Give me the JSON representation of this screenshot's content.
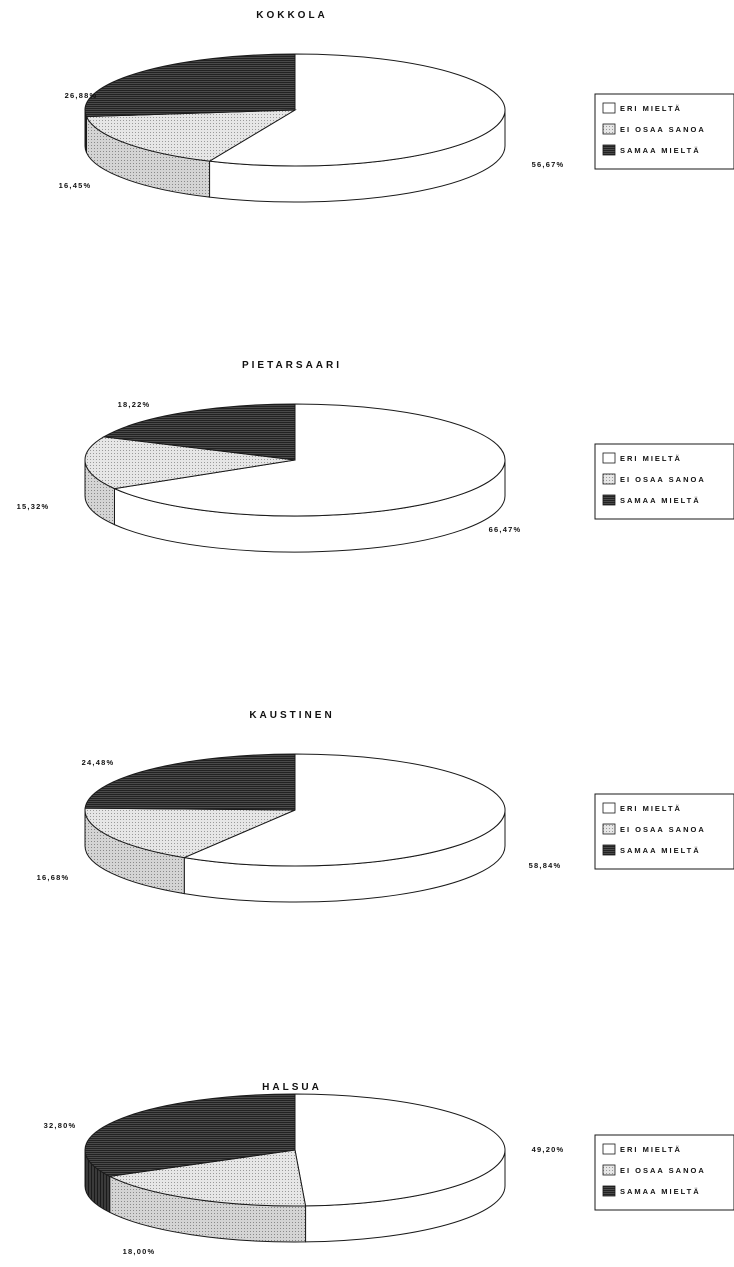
{
  "colors": {
    "eri_mielta": "#ffffff",
    "ei_osaa_sanoa": "#dcdcdc",
    "samaa_mielta": "#3a3a3a",
    "outline": "#1a1a1a"
  },
  "legend": [
    {
      "label": "ERI MIELTÄ",
      "color_key": "eri_mielta"
    },
    {
      "label": "EI OSAA SANOA",
      "color_key": "ei_osaa_sanoa"
    },
    {
      "label": "SAMAA MIELTÄ",
      "color_key": "samaa_mielta"
    }
  ],
  "chart_data": [
    {
      "type": "pie",
      "title": "KOKKOLA",
      "categories": [
        "ERI MIELTÄ",
        "EI OSAA SANOA",
        "SAMAA MIELTÄ"
      ],
      "values": [
        56.67,
        16.45,
        26.88
      ],
      "labels": [
        "56,67%",
        "16,45%",
        "26,88%"
      ],
      "legend_position": "right"
    },
    {
      "type": "pie",
      "title": "PIETARSAARI",
      "categories": [
        "ERI MIELTÄ",
        "EI OSAA SANOA",
        "SAMAA MIELTÄ"
      ],
      "values": [
        66.47,
        15.32,
        18.22
      ],
      "labels": [
        "66,47%",
        "15,32%",
        "18,22%"
      ],
      "legend_position": "right"
    },
    {
      "type": "pie",
      "title": "KAUSTINEN",
      "categories": [
        "ERI MIELTÄ",
        "EI OSAA SANOA",
        "SAMAA MIELTÄ"
      ],
      "values": [
        58.84,
        16.68,
        24.48
      ],
      "labels": [
        "58,84%",
        "16,68%",
        "24,48%"
      ],
      "legend_position": "right"
    },
    {
      "type": "pie",
      "title": "HALSUA",
      "categories": [
        "ERI MIELTÄ",
        "EI OSAA SANOA",
        "SAMAA MIELTÄ"
      ],
      "values": [
        49.2,
        18.0,
        32.8
      ],
      "labels": [
        "49,20%",
        "18,00%",
        "32,80%"
      ],
      "legend_position": "right"
    }
  ]
}
